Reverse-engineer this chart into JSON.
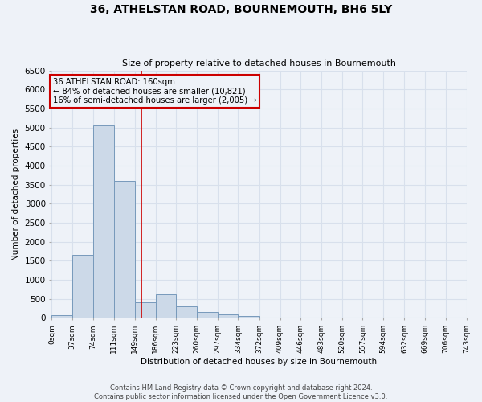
{
  "title": "36, ATHELSTAN ROAD, BOURNEMOUTH, BH6 5LY",
  "subtitle": "Size of property relative to detached houses in Bournemouth",
  "xlabel": "Distribution of detached houses by size in Bournemouth",
  "ylabel": "Number of detached properties",
  "bin_edges": [
    0,
    37,
    74,
    111,
    149,
    186,
    223,
    260,
    297,
    334,
    372,
    409,
    446,
    483,
    520,
    557,
    594,
    632,
    669,
    706,
    743
  ],
  "bin_counts": [
    75,
    1650,
    5050,
    3600,
    400,
    620,
    300,
    150,
    100,
    60,
    0,
    0,
    0,
    0,
    0,
    0,
    0,
    0,
    0,
    0
  ],
  "property_size": 160,
  "bar_face_color": "#ccd9e8",
  "bar_edge_color": "#7799bb",
  "vline_color": "#cc0000",
  "annotation_box_color": "#cc0000",
  "annotation_text_line1": "36 ATHELSTAN ROAD: 160sqm",
  "annotation_text_line2": "← 84% of detached houses are smaller (10,821)",
  "annotation_text_line3": "16% of semi-detached houses are larger (2,005) →",
  "ylim": [
    0,
    6500
  ],
  "yticks": [
    0,
    500,
    1000,
    1500,
    2000,
    2500,
    3000,
    3500,
    4000,
    4500,
    5000,
    5500,
    6000,
    6500
  ],
  "footer_lines": [
    "Contains HM Land Registry data © Crown copyright and database right 2024.",
    "Contains public sector information licensed under the Open Government Licence v3.0."
  ],
  "background_color": "#eef2f8",
  "grid_color": "#d8e0ec"
}
